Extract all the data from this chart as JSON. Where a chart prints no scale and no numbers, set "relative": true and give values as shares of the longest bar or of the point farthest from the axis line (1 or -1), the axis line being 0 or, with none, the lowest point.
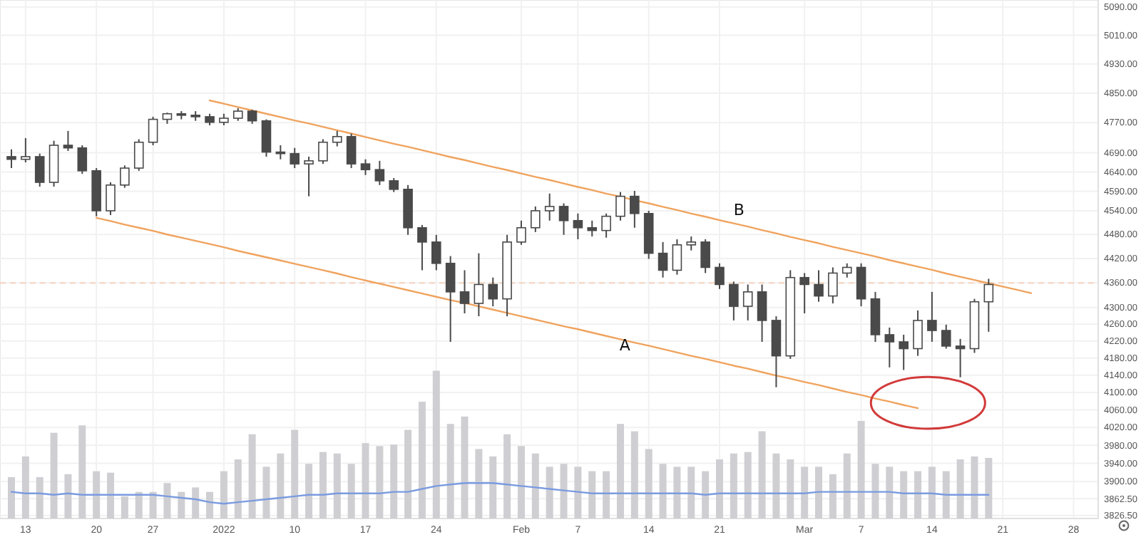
{
  "chart_data": [
    {
      "type": "candlestick",
      "log": true,
      "grid": true,
      "ylim": [
        3820,
        5110
      ],
      "categories": [
        null,
        "13",
        null,
        null,
        null,
        null,
        "20",
        null,
        null,
        null,
        "27",
        null,
        null,
        null,
        null,
        "2022",
        null,
        null,
        null,
        null,
        "10",
        null,
        null,
        null,
        null,
        "17",
        null,
        null,
        null,
        null,
        "24",
        null,
        null,
        null,
        null,
        null,
        "Feb",
        null,
        null,
        null,
        "7",
        null,
        null,
        null,
        null,
        "14",
        null,
        null,
        null,
        null,
        "21",
        null,
        null,
        null,
        null,
        null,
        "Mar",
        null,
        null,
        null,
        "7",
        null,
        null,
        null,
        null,
        "14",
        null,
        null,
        null,
        null,
        "21",
        null,
        null,
        null,
        null,
        "28"
      ],
      "yticks": [
        {
          "value": 5090,
          "label": "5090.00"
        },
        {
          "value": 5010,
          "label": "5010.00"
        },
        {
          "value": 4930,
          "label": "4930.00"
        },
        {
          "value": 4850,
          "label": "4850.00"
        },
        {
          "value": 4770,
          "label": "4770.00"
        },
        {
          "value": 4690,
          "label": "4690.00"
        },
        {
          "value": 4640,
          "label": "4640.00"
        },
        {
          "value": 4590,
          "label": "4590.00"
        },
        {
          "value": 4540,
          "label": "4540.00"
        },
        {
          "value": 4480,
          "label": "4480.00"
        },
        {
          "value": 4420,
          "label": "4420.00"
        },
        {
          "value": 4360,
          "label": "4360.00"
        },
        {
          "value": 4300,
          "label": "4300.00"
        },
        {
          "value": 4260,
          "label": "4260.00"
        },
        {
          "value": 4220,
          "label": "4220.00"
        },
        {
          "value": 4180,
          "label": "4180.00"
        },
        {
          "value": 4140,
          "label": "4140.00"
        },
        {
          "value": 4100,
          "label": "4100.00"
        },
        {
          "value": 4060,
          "label": "4060.00"
        },
        {
          "value": 4020,
          "label": "4020.00"
        },
        {
          "value": 3980,
          "label": "3980.00"
        },
        {
          "value": 3940,
          "label": "3940.00"
        },
        {
          "value": 3900,
          "label": "3900.00"
        },
        {
          "value": 3862.5,
          "label": "3862.50"
        },
        {
          "value": 3826.5,
          "label": "3826.50"
        }
      ],
      "ref_lines": [
        {
          "axis": "y",
          "value": 4360,
          "color": "#f6d2bd",
          "line_style": "dashed"
        }
      ],
      "annotations": [
        "A",
        "B"
      ],
      "series": [
        {
          "color": "#4a4a4a",
          "ohlc": [
            [
              4680,
              4699,
              4650,
              4673
            ],
            [
              4673,
              4729,
              4665,
              4680
            ],
            [
              4680,
              4688,
              4602,
              4613
            ],
            [
              4613,
              4722,
              4602,
              4710
            ],
            [
              4710,
              4748,
              4695,
              4703
            ],
            [
              4703,
              4710,
              4635,
              4643
            ],
            [
              4643,
              4650,
              4526,
              4540
            ],
            [
              4540,
              4613,
              4529,
              4606
            ],
            [
              4606,
              4657,
              4599,
              4650
            ],
            [
              4650,
              4726,
              4643,
              4718
            ],
            [
              4718,
              4786,
              4710,
              4779
            ],
            [
              4779,
              4797,
              4767,
              4794
            ],
            [
              4794,
              4801,
              4779,
              4790
            ],
            [
              4790,
              4801,
              4775,
              4786
            ],
            [
              4786,
              4794,
              4763,
              4771
            ],
            [
              4771,
              4794,
              4763,
              4782
            ],
            [
              4782,
              4809,
              4775,
              4801
            ],
            [
              4801,
              4805,
              4767,
              4775
            ],
            [
              4775,
              4779,
              4680,
              4692
            ],
            [
              4692,
              4710,
              4673,
              4688
            ],
            [
              4688,
              4703,
              4650,
              4661
            ],
            [
              4661,
              4680,
              4577,
              4669
            ],
            [
              4669,
              4726,
              4661,
              4718
            ],
            [
              4718,
              4748,
              4707,
              4733
            ],
            [
              4733,
              4741,
              4650,
              4661
            ],
            [
              4661,
              4673,
              4632,
              4646
            ],
            [
              4646,
              4669,
              4606,
              4617
            ],
            [
              4617,
              4624,
              4588,
              4595
            ],
            [
              4595,
              4606,
              4479,
              4497
            ],
            [
              4497,
              4504,
              4391,
              4461
            ],
            [
              4461,
              4479,
              4391,
              4408
            ],
            [
              4408,
              4426,
              4218,
              4338
            ],
            [
              4338,
              4391,
              4286,
              4310
            ],
            [
              4310,
              4433,
              4279,
              4356
            ],
            [
              4356,
              4373,
              4303,
              4321
            ],
            [
              4321,
              4479,
              4279,
              4461
            ],
            [
              4461,
              4515,
              4454,
              4497
            ],
            [
              4497,
              4551,
              4486,
              4540
            ],
            [
              4540,
              4584,
              4515,
              4551
            ],
            [
              4551,
              4559,
              4479,
              4515
            ],
            [
              4515,
              4533,
              4468,
              4497
            ],
            [
              4497,
              4515,
              4475,
              4490
            ],
            [
              4490,
              4533,
              4472,
              4526
            ],
            [
              4526,
              4588,
              4515,
              4577
            ],
            [
              4577,
              4591,
              4497,
              4533
            ],
            [
              4533,
              4540,
              4419,
              4433
            ],
            [
              4433,
              4461,
              4373,
              4391
            ],
            [
              4391,
              4468,
              4380,
              4454
            ],
            [
              4454,
              4475,
              4440,
              4461
            ],
            [
              4461,
              4468,
              4384,
              4398
            ],
            [
              4398,
              4408,
              4345,
              4356
            ],
            [
              4356,
              4363,
              4269,
              4303
            ],
            [
              4303,
              4356,
              4269,
              4338
            ],
            [
              4338,
              4356,
              4218,
              4269
            ],
            [
              4269,
              4279,
              4112,
              4185
            ],
            [
              4185,
              4391,
              4178,
              4373
            ],
            [
              4373,
              4384,
              4286,
              4356
            ],
            [
              4356,
              4391,
              4314,
              4328
            ],
            [
              4328,
              4398,
              4310,
              4384
            ],
            [
              4384,
              4408,
              4373,
              4398
            ],
            [
              4398,
              4408,
              4303,
              4321
            ],
            [
              4321,
              4338,
              4218,
              4235
            ],
            [
              4235,
              4252,
              4158,
              4218
            ],
            [
              4218,
              4235,
              4152,
              4202
            ],
            [
              4202,
              4293,
              4185,
              4269
            ],
            [
              4269,
              4338,
              4218,
              4245
            ],
            [
              4245,
              4259,
              4202,
              4208
            ],
            [
              4208,
              4225,
              4135,
              4202
            ],
            [
              4202,
              4321,
              4192,
              4314
            ],
            [
              4314,
              4370,
              4242,
              4356
            ],
            null,
            null,
            null,
            null,
            null,
            null
          ]
        },
        {
          "type": "line",
          "color": "#f0a35e",
          "values": [
            null,
            null,
            null,
            null,
            null,
            null,
            null,
            null,
            null,
            null,
            null,
            null,
            null,
            null,
            4830,
            4821,
            4812,
            4803,
            4794,
            4785,
            4776,
            4768,
            4759,
            4750,
            4741,
            4732,
            4723,
            4714,
            4706,
            4697,
            4688,
            4679,
            4671,
            4662,
            4653,
            4645,
            4636,
            4627,
            4619,
            4610,
            4601,
            4593,
            4584,
            4576,
            4567,
            4559,
            4550,
            4542,
            4533,
            4525,
            4516,
            4508,
            4500,
            4491,
            4483,
            4474,
            4466,
            4458,
            4449,
            4441,
            4433,
            4425,
            4416,
            4408,
            4400,
            4392,
            4383,
            4375,
            4367,
            4359,
            4351,
            4343,
            4335,
            null,
            null,
            null
          ]
        },
        {
          "type": "line",
          "color": "#f0a35e",
          "values": [
            null,
            null,
            null,
            null,
            null,
            null,
            4522,
            4514,
            4505,
            4497,
            4489,
            4480,
            4472,
            4464,
            4456,
            4448,
            4439,
            4431,
            4423,
            4415,
            4407,
            4399,
            4391,
            4383,
            4374,
            4366,
            4358,
            4350,
            4342,
            4334,
            4326,
            4318,
            4311,
            4303,
            4295,
            4287,
            4279,
            4271,
            4263,
            4255,
            4248,
            4240,
            4232,
            4224,
            4216,
            4209,
            4201,
            4193,
            4185,
            4178,
            4170,
            4162,
            4155,
            4147,
            4139,
            4132,
            4124,
            4117,
            4109,
            4101,
            4094,
            4086,
            4079,
            4071,
            4064,
            null,
            null,
            null,
            null,
            null,
            null,
            null,
            null,
            null,
            null,
            null
          ]
        }
      ]
    },
    {
      "type": "bar",
      "relative": true,
      "categories": [
        null,
        null,
        null,
        null,
        null,
        null,
        null,
        null,
        null,
        null,
        null,
        null,
        null,
        null,
        null,
        null,
        null,
        null,
        null,
        null,
        null,
        null,
        null,
        null,
        null,
        null,
        null,
        null,
        null,
        null,
        null,
        null,
        null,
        null,
        null,
        null,
        null,
        null,
        null,
        null,
        null,
        null,
        null,
        null,
        null,
        null,
        null,
        null,
        null,
        null,
        null,
        null,
        null,
        null,
        null,
        null,
        null,
        null,
        null,
        null,
        null,
        null,
        null,
        null,
        null,
        null,
        null,
        null,
        null,
        null,
        null,
        null,
        null,
        null,
        null,
        null
      ],
      "series": [
        {
          "color": "#cfcfd3",
          "values": [
            0.28,
            0.42,
            0.28,
            0.58,
            0.3,
            0.63,
            0.32,
            0.31,
            0.15,
            0.18,
            0.18,
            0.24,
            0.18,
            0.21,
            0.18,
            0.32,
            0.4,
            0.57,
            0.35,
            0.44,
            0.6,
            0.37,
            0.45,
            0.44,
            0.37,
            0.51,
            0.49,
            0.5,
            0.6,
            0.79,
            1,
            0.64,
            0.69,
            0.47,
            0.42,
            0.57,
            0.49,
            0.44,
            0.35,
            0.37,
            0.35,
            0.32,
            0.32,
            0.64,
            0.59,
            0.47,
            0.37,
            0.35,
            0.35,
            0.32,
            0.4,
            0.44,
            0.45,
            0.59,
            0.44,
            0.4,
            0.35,
            0.35,
            0.3,
            0.44,
            0.66,
            0.37,
            0.35,
            0.32,
            0.32,
            0.35,
            0.32,
            0.4,
            0.42,
            0.41,
            null,
            null,
            null,
            null,
            null,
            null
          ]
        },
        {
          "type": "line",
          "color": "#7b9be0",
          "values": [
            0.18,
            0.17,
            0.17,
            0.16,
            0.17,
            0.16,
            0.16,
            0.16,
            0.16,
            0.16,
            0.16,
            0.15,
            0.14,
            0.13,
            0.11,
            0.1,
            0.11,
            0.12,
            0.13,
            0.14,
            0.15,
            0.16,
            0.16,
            0.17,
            0.17,
            0.17,
            0.17,
            0.18,
            0.18,
            0.2,
            0.22,
            0.23,
            0.24,
            0.24,
            0.24,
            0.23,
            0.22,
            0.21,
            0.2,
            0.19,
            0.18,
            0.17,
            0.17,
            0.17,
            0.17,
            0.17,
            0.17,
            0.17,
            0.17,
            0.16,
            0.17,
            0.17,
            0.17,
            0.17,
            0.17,
            0.17,
            0.17,
            0.18,
            0.18,
            0.18,
            0.18,
            0.18,
            0.18,
            0.17,
            0.17,
            0.17,
            0.16,
            0.16,
            0.16,
            0.16,
            null,
            null,
            null,
            null,
            null,
            null
          ]
        }
      ]
    }
  ]
}
